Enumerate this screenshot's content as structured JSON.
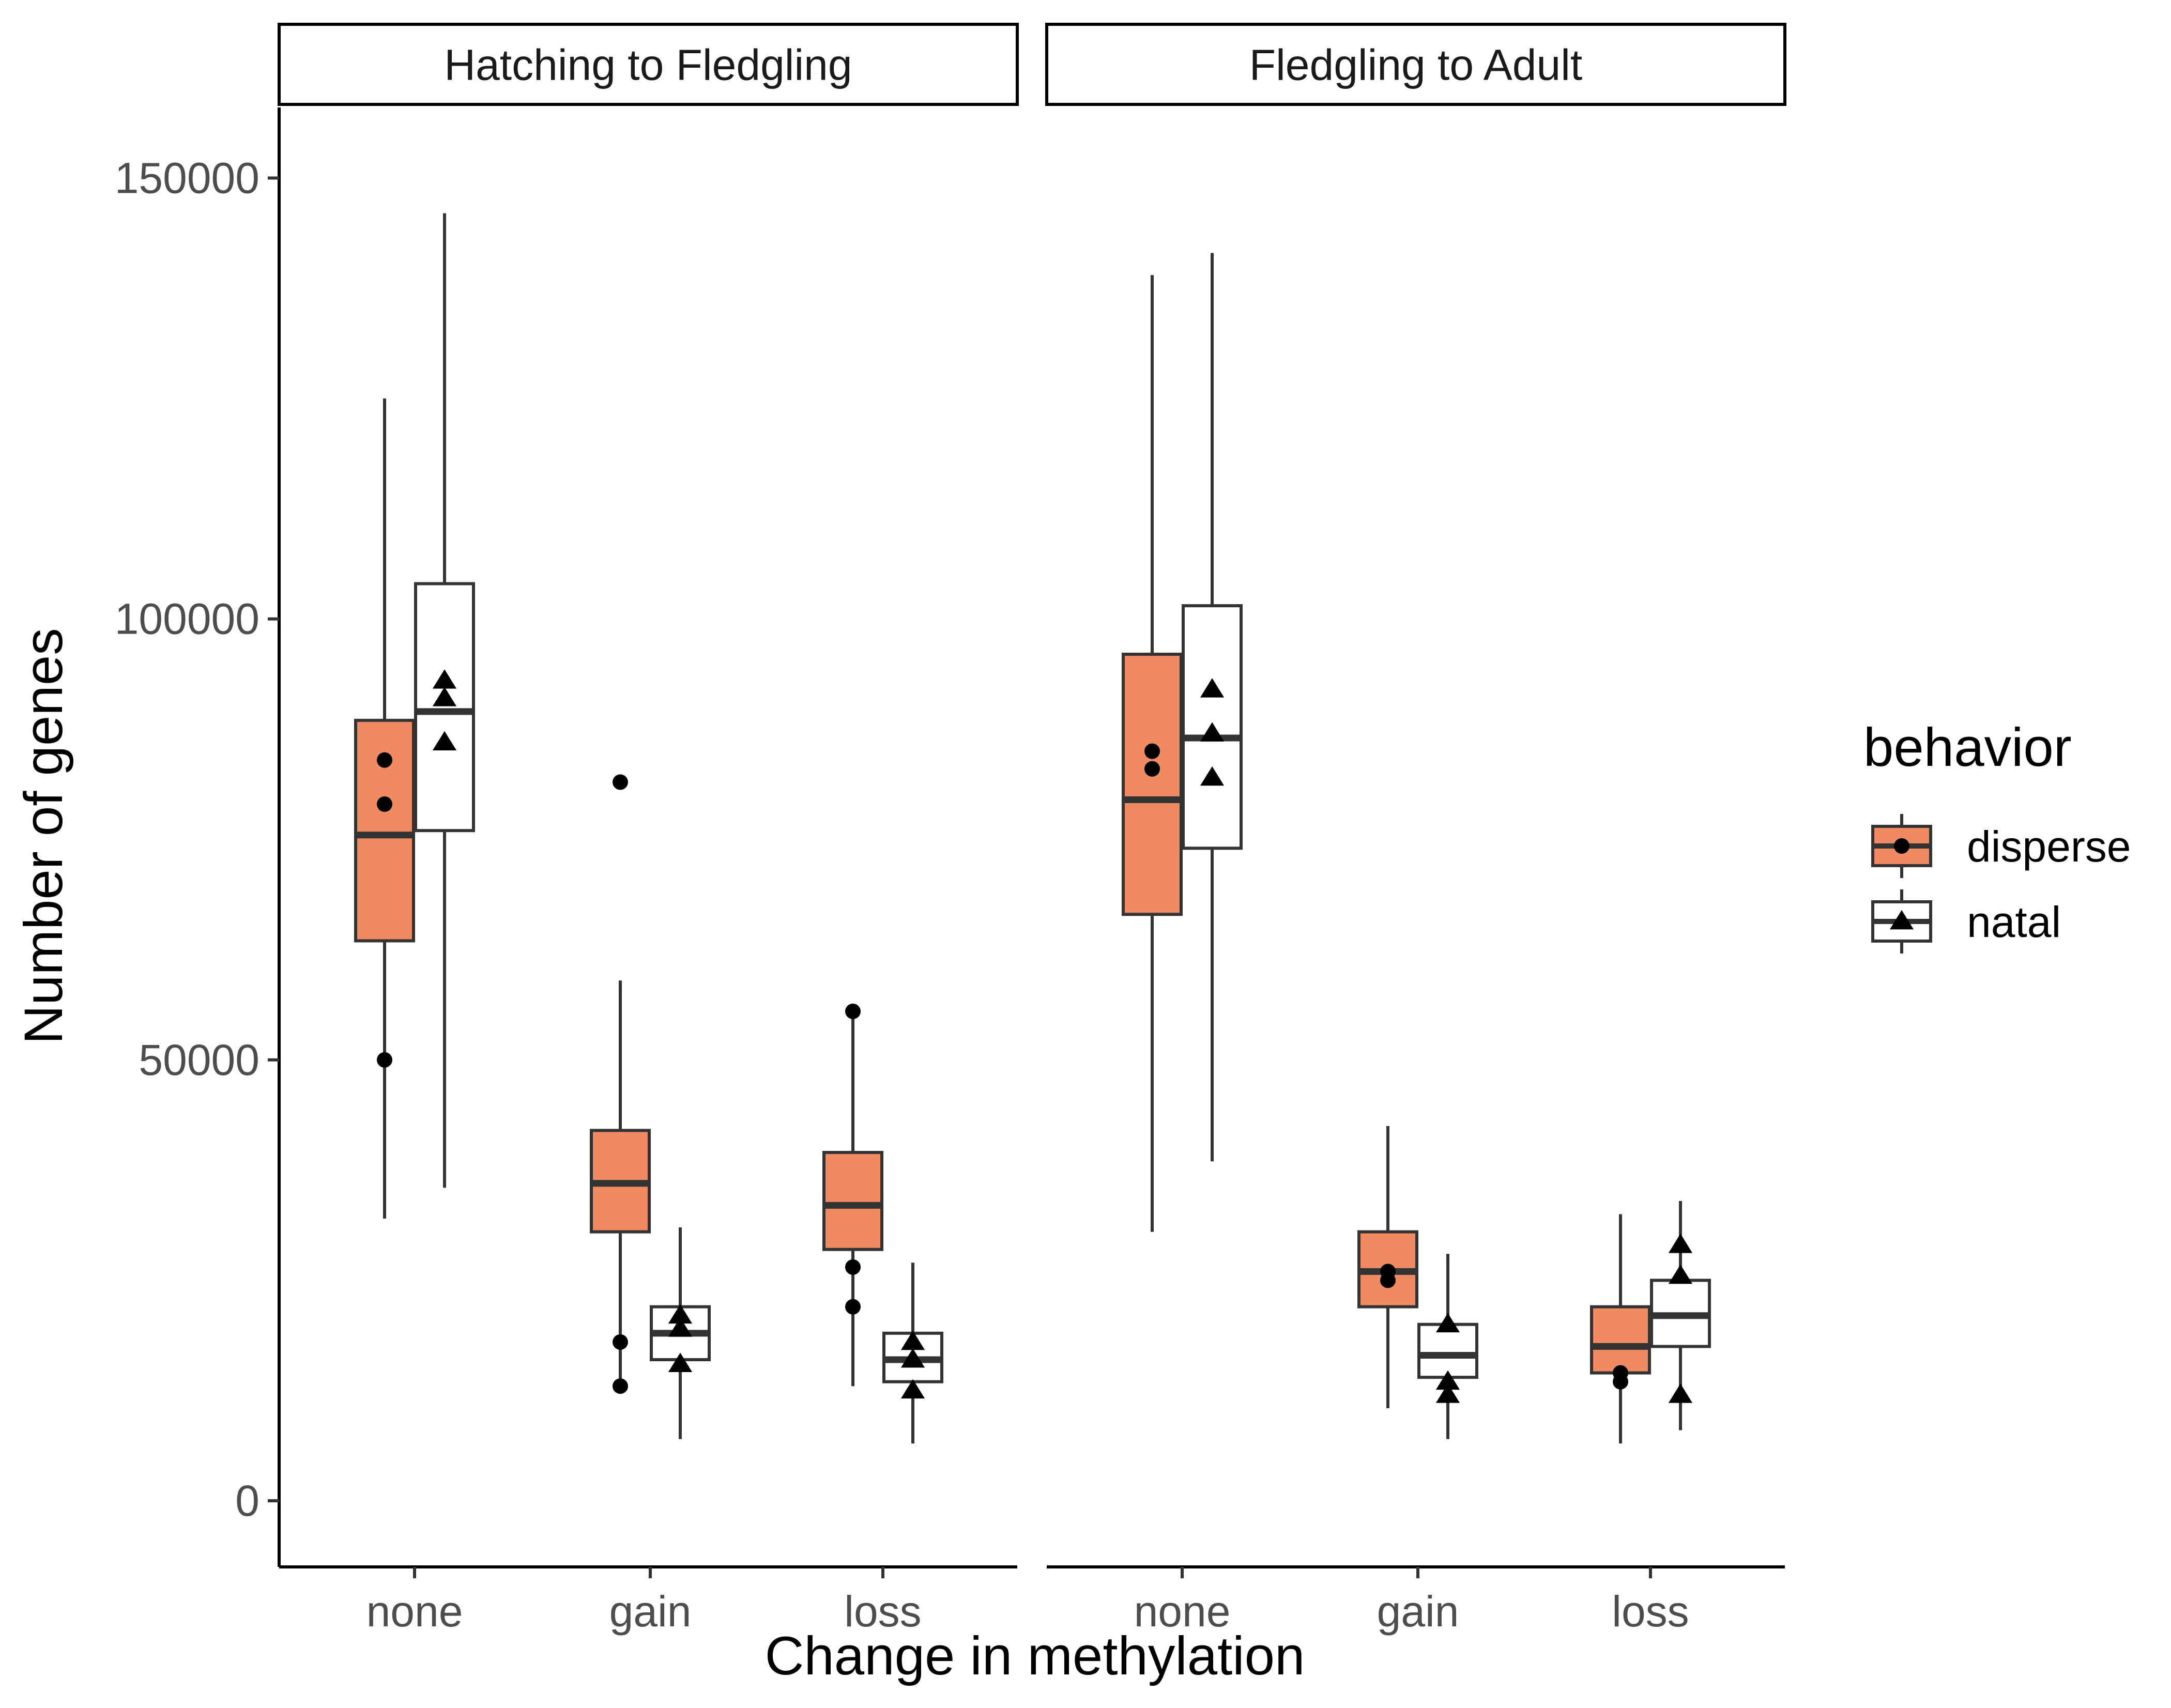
{
  "chart_data": {
    "type": "box",
    "xlabel": "Change in methylation",
    "ylabel": "Number of genes",
    "ylim": [
      -7500,
      158000
    ],
    "yticks": [
      0,
      50000,
      100000,
      150000
    ],
    "ytick_labels": [
      "0",
      "50000",
      "100000",
      "150000"
    ],
    "categories": [
      "none",
      "gain",
      "loss"
    ],
    "legend": {
      "title": "behavior",
      "position": "right",
      "items": [
        {
          "label": "disperse",
          "fill": "#EF8A62",
          "shape": "circle"
        },
        {
          "label": "natal",
          "fill": "#FFFFFF",
          "shape": "triangle"
        }
      ]
    },
    "panels": [
      {
        "title": "Hatching to Fledgling",
        "boxes": [
          {
            "category": "none",
            "group": "disperse",
            "min": 32000,
            "q1": 63500,
            "median": 75500,
            "q3": 88500,
            "max": 125000,
            "points": [
              84000,
              79000,
              50000
            ]
          },
          {
            "category": "none",
            "group": "natal",
            "min": 35500,
            "q1": 76000,
            "median": 89500,
            "q3": 104000,
            "max": 146000,
            "points": [
              93000,
              91000,
              86000
            ]
          },
          {
            "category": "gain",
            "group": "disperse",
            "min": 13000,
            "q1": 30500,
            "median": 36000,
            "q3": 42000,
            "max": 59000,
            "points": [
              81500,
              18000,
              13000
            ]
          },
          {
            "category": "gain",
            "group": "natal",
            "min": 7000,
            "q1": 16000,
            "median": 19000,
            "q3": 22000,
            "max": 31000,
            "points": [
              21000,
              19500,
              15500
            ]
          },
          {
            "category": "loss",
            "group": "disperse",
            "min": 13000,
            "q1": 28500,
            "median": 33500,
            "q3": 39500,
            "max": 55500,
            "points": [
              55500,
              26500,
              22000
            ]
          },
          {
            "category": "loss",
            "group": "natal",
            "min": 6500,
            "q1": 13500,
            "median": 16000,
            "q3": 19000,
            "max": 27000,
            "points": [
              18000,
              16000,
              12500
            ]
          }
        ]
      },
      {
        "title": "Fledgling to Adult",
        "boxes": [
          {
            "category": "none",
            "group": "disperse",
            "min": 30500,
            "q1": 66500,
            "median": 79500,
            "q3": 96000,
            "max": 139000,
            "points": [
              85000,
              83000
            ]
          },
          {
            "category": "none",
            "group": "natal",
            "min": 38500,
            "q1": 74000,
            "median": 86500,
            "q3": 101500,
            "max": 141500,
            "points": [
              92000,
              87000,
              82000
            ]
          },
          {
            "category": "gain",
            "group": "disperse",
            "min": 10500,
            "q1": 22000,
            "median": 26000,
            "q3": 30500,
            "max": 42500,
            "points": [
              26000,
              25000
            ]
          },
          {
            "category": "gain",
            "group": "natal",
            "min": 7000,
            "q1": 14000,
            "median": 16500,
            "q3": 20000,
            "max": 28000,
            "points": [
              20000,
              13500,
              12000
            ]
          },
          {
            "category": "loss",
            "group": "disperse",
            "min": 6500,
            "q1": 14500,
            "median": 17500,
            "q3": 22000,
            "max": 32500,
            "points": [
              14500,
              13500
            ]
          },
          {
            "category": "loss",
            "group": "natal",
            "min": 8000,
            "q1": 17500,
            "median": 21000,
            "q3": 25000,
            "max": 34000,
            "points": [
              29000,
              25500,
              12000
            ]
          }
        ]
      }
    ]
  }
}
